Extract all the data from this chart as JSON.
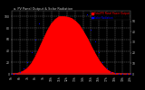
{
  "title": "a. PV Panel Output & Solar Radiation",
  "bg_color": "#000000",
  "plot_bg_color": "#000000",
  "grid_color": "#ffffff",
  "hours": [
    5,
    5.5,
    6,
    6.5,
    7,
    7.5,
    8,
    8.5,
    9,
    9.5,
    10,
    10.5,
    11,
    11.5,
    12,
    12.5,
    13,
    13.5,
    14,
    14.5,
    15,
    15.5,
    16,
    16.5,
    17,
    17.5,
    18,
    18.5,
    19,
    19.5,
    20
  ],
  "pv_power": [
    0,
    0.5,
    2,
    5,
    10,
    18,
    30,
    45,
    60,
    75,
    87,
    95,
    100,
    100,
    99,
    97,
    92,
    85,
    74,
    62,
    48,
    35,
    23,
    14,
    7,
    3,
    1,
    0.3,
    0,
    0,
    0
  ],
  "solar_rad": [
    0,
    0.2,
    1,
    3,
    6,
    11,
    18,
    26,
    34,
    41,
    47,
    50,
    52,
    52,
    51,
    50,
    47,
    43,
    37,
    31,
    23,
    17,
    11,
    6,
    3,
    1,
    0.3,
    0,
    0,
    0,
    0
  ],
  "pv_color": "#ff0000",
  "rad_color": "#0000ff",
  "legend_pv": "Total PV Panel Power Output",
  "legend_rad": "Solar Radiation",
  "ylabel_left": "kW",
  "ylabel_right": "W/m²",
  "ylim_left": [
    0,
    110
  ],
  "ylim_right": [
    0,
    60
  ],
  "xlim": [
    5,
    20
  ],
  "xticks": [
    5,
    6,
    7,
    8,
    9,
    10,
    11,
    12,
    13,
    14,
    15,
    16,
    17,
    18,
    19,
    20
  ],
  "xtick_labels": [
    "5h",
    "6h",
    "7h",
    "8h",
    "9h",
    "10h",
    "11h",
    "12h",
    "13h",
    "14h",
    "15h",
    "16h",
    "17h",
    "18h",
    "19h",
    "20h"
  ],
  "yticks_left": [
    0,
    20,
    40,
    60,
    80,
    100
  ],
  "yticks_right": [
    0,
    10,
    20,
    30,
    40,
    50
  ],
  "title_color": "#cccccc",
  "tick_color": "#cccccc",
  "legend_pv_color": "#ff0000",
  "legend_rad_color": "#0000ff"
}
